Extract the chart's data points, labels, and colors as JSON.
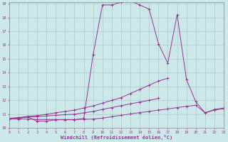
{
  "xlabel": "Windchill (Refroidissement éolien,°C)",
  "background_color": "#cce8e8",
  "grid_color": "#aacccc",
  "line_color": "#993399",
  "xmin": 0,
  "xmax": 23,
  "ymin": 10,
  "ymax": 19,
  "series": [
    {
      "x": [
        0,
        1,
        2,
        3,
        4,
        5,
        6,
        7,
        8,
        9,
        10,
        11,
        12,
        13,
        14,
        15,
        16,
        17,
        18,
        19,
        20,
        21,
        22,
        23
      ],
      "y": [
        10.7,
        10.7,
        10.8,
        10.5,
        10.5,
        10.6,
        10.6,
        10.6,
        10.7,
        15.3,
        18.9,
        18.9,
        19.1,
        19.2,
        18.9,
        18.6,
        16.1,
        14.7,
        18.2,
        13.5,
        11.9,
        11.1,
        11.3,
        11.4
      ]
    },
    {
      "x": [
        0,
        1,
        2,
        3,
        4,
        5,
        6,
        7,
        8,
        9,
        10,
        11,
        12,
        13,
        14,
        15,
        16,
        17,
        18,
        19,
        20,
        21,
        22,
        23
      ],
      "y": [
        10.7,
        10.75,
        10.85,
        10.9,
        11.0,
        11.1,
        11.2,
        11.3,
        11.45,
        11.6,
        11.8,
        12.0,
        12.2,
        12.5,
        12.8,
        13.1,
        13.4,
        13.6,
        null,
        null,
        null,
        null,
        null,
        null
      ]
    },
    {
      "x": [
        0,
        1,
        2,
        3,
        4,
        5,
        6,
        7,
        8,
        9,
        10,
        11,
        12,
        13,
        14,
        15,
        16,
        17,
        18,
        19,
        20,
        21,
        22,
        23
      ],
      "y": [
        10.7,
        10.75,
        10.8,
        10.82,
        10.88,
        10.92,
        10.97,
        11.0,
        11.1,
        11.2,
        11.35,
        11.48,
        11.62,
        11.75,
        11.88,
        12.0,
        12.15,
        null,
        null,
        null,
        null,
        null,
        null,
        null
      ]
    },
    {
      "x": [
        0,
        1,
        2,
        3,
        4,
        5,
        6,
        7,
        8,
        9,
        10,
        11,
        12,
        13,
        14,
        15,
        16,
        17,
        18,
        19,
        20,
        21,
        22,
        23
      ],
      "y": [
        10.65,
        10.65,
        10.65,
        10.62,
        10.62,
        10.62,
        10.62,
        10.62,
        10.63,
        10.65,
        10.72,
        10.82,
        10.92,
        11.02,
        11.12,
        11.2,
        11.3,
        11.38,
        11.48,
        11.57,
        11.65,
        11.1,
        11.35,
        11.45
      ]
    }
  ]
}
